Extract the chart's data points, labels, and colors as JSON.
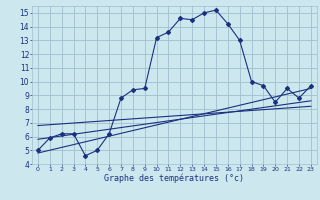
{
  "bg_color": "#cce8ee",
  "grid_color": "#a0bece",
  "line_color": "#1a3080",
  "xlabel": "Graphe des températures (°c)",
  "xlim": [
    -0.5,
    23.5
  ],
  "ylim": [
    4,
    15.5
  ],
  "xticks": [
    0,
    1,
    2,
    3,
    4,
    5,
    6,
    7,
    8,
    9,
    10,
    11,
    12,
    13,
    14,
    15,
    16,
    17,
    18,
    19,
    20,
    21,
    22,
    23
  ],
  "yticks": [
    4,
    5,
    6,
    7,
    8,
    9,
    10,
    11,
    12,
    13,
    14,
    15
  ],
  "main_curve_x": [
    0,
    1,
    2,
    3,
    4,
    5,
    6,
    7,
    8,
    9,
    10,
    11,
    12,
    13,
    14,
    15,
    16,
    17,
    18,
    19,
    20,
    21,
    22,
    23
  ],
  "main_curve_y": [
    5.0,
    5.9,
    6.2,
    6.2,
    4.6,
    5.0,
    6.2,
    8.8,
    9.4,
    9.5,
    13.2,
    13.6,
    14.6,
    14.5,
    15.0,
    15.2,
    14.2,
    13.0,
    10.0,
    9.7,
    8.5,
    9.5,
    8.8,
    9.7
  ],
  "line1_x": [
    0,
    23
  ],
  "line1_y": [
    4.8,
    9.5
  ],
  "line2_x": [
    0,
    23
  ],
  "line2_y": [
    5.8,
    8.6
  ],
  "line3_x": [
    0,
    23
  ],
  "line3_y": [
    6.8,
    8.2
  ]
}
